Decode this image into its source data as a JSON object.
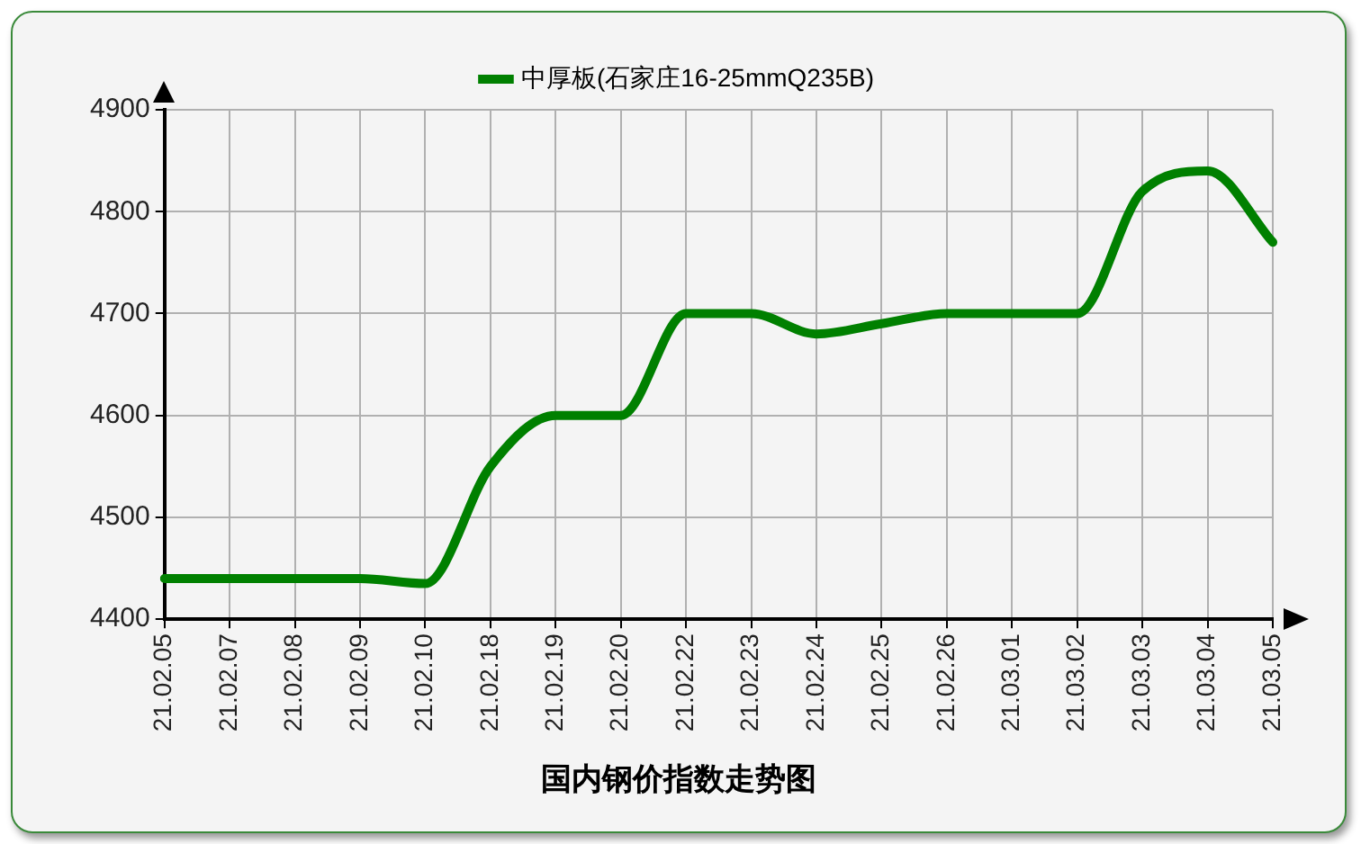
{
  "chart_data": {
    "type": "line",
    "title": "国内钢价指数走势图",
    "categories": [
      "21.02.05",
      "21.02.07",
      "21.02.08",
      "21.02.09",
      "21.02.10",
      "21.02.18",
      "21.02.19",
      "21.02.20",
      "21.02.22",
      "21.02.23",
      "21.02.24",
      "21.02.25",
      "21.02.26",
      "21.03.01",
      "21.03.02",
      "21.03.03",
      "21.03.04",
      "21.03.05"
    ],
    "series": [
      {
        "name": "中厚板(石家庄16-25mmQ235B)",
        "color": "#008000",
        "values": [
          4440,
          4440,
          4440,
          4440,
          4435,
          4550,
          4600,
          4600,
          4700,
          4700,
          4680,
          4690,
          4700,
          4700,
          4700,
          4820,
          4840,
          4770
        ]
      }
    ],
    "ylim": [
      4400,
      4900
    ],
    "yticks": [
      4400,
      4500,
      4600,
      4700,
      4800,
      4900
    ],
    "grid": true,
    "legend": "top",
    "marker": "none",
    "line_style": "solid"
  }
}
